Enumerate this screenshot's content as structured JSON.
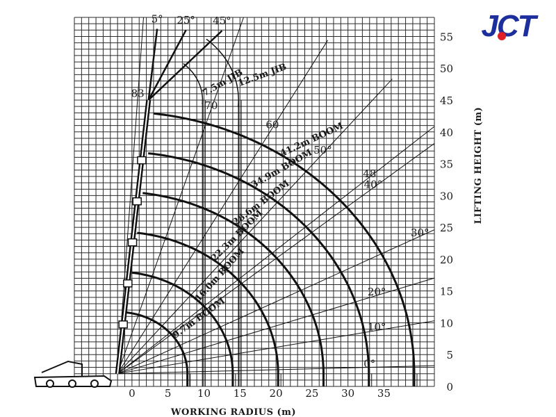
{
  "brand": {
    "logo_text": "JCT",
    "primary_color": "#1c2f9c",
    "accent_color": "#e01c24"
  },
  "chart_data": {
    "type": "line",
    "title": "",
    "xlabel": "WORKING RADIUS (m)",
    "ylabel": "LIFTING HEIGHT (m)",
    "xlim": [
      -8,
      42
    ],
    "ylim": [
      0,
      58
    ],
    "x_ticks": [
      0,
      5,
      10,
      15,
      20,
      25,
      30,
      35
    ],
    "y_ticks": [
      0,
      5,
      10,
      15,
      20,
      25,
      30,
      35,
      40,
      45,
      50,
      55
    ],
    "grid": true,
    "pivot": [
      2.3,
      45
    ],
    "series": [
      {
        "name": "9.7m BOOM",
        "pivot": [
          -2,
          2
        ],
        "length": 9.7
      },
      {
        "name": "16.0m BOOM",
        "pivot": [
          -2,
          2
        ],
        "length": 16.0
      },
      {
        "name": "22.3m BOOM",
        "pivot": [
          -2,
          2
        ],
        "length": 22.3
      },
      {
        "name": "28.6m BOOM",
        "pivot": [
          -2,
          2
        ],
        "length": 28.6
      },
      {
        "name": "34.9m BOOM",
        "pivot": [
          -2,
          2
        ],
        "length": 34.9
      },
      {
        "name": "41.2m BOOM",
        "pivot": [
          -2,
          2
        ],
        "length": 41.2
      },
      {
        "name": "7.5m JIB",
        "pivot": [
          2.3,
          45
        ],
        "length": 7.5
      },
      {
        "name": "12.5m JIB",
        "pivot": [
          2.3,
          45
        ],
        "length": 12.5
      }
    ],
    "boom_angles": [
      {
        "label": "0°",
        "x": 33,
        "y": 3
      },
      {
        "label": "10°",
        "x": 34,
        "y": 8.8
      },
      {
        "label": "20°",
        "x": 34,
        "y": 14.3
      },
      {
        "label": "30°",
        "x": 40,
        "y": 23.6
      },
      {
        "label": "40°",
        "x": 33.5,
        "y": 31.2
      },
      {
        "label": "48",
        "x": 33,
        "y": 32.9
      },
      {
        "label": "50°",
        "x": 26.5,
        "y": 36.6
      },
      {
        "label": "60",
        "x": 19.5,
        "y": 40.6
      },
      {
        "label": "70",
        "x": 11,
        "y": 43.6
      },
      {
        "label": "83",
        "x": 0.8,
        "y": 45.5
      }
    ],
    "jib_offsets": [
      {
        "label": "5°",
        "x": 3.5,
        "y": 57.2
      },
      {
        "label": "25°",
        "x": 7.5,
        "y": 57.0
      },
      {
        "label": "45°",
        "x": 12.5,
        "y": 56.9
      }
    ]
  }
}
